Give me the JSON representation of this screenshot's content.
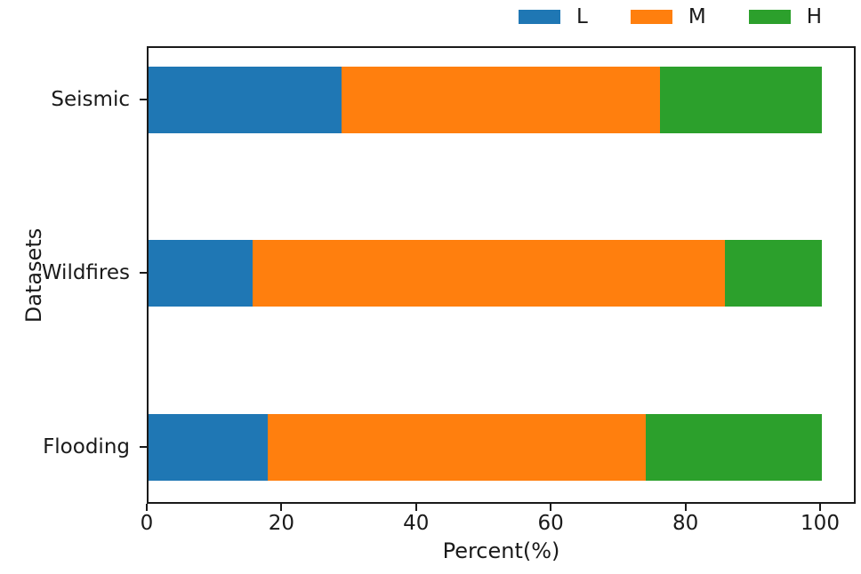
{
  "chart_data": {
    "type": "bar",
    "subtype": "horizontal-stacked",
    "title": "",
    "xlabel": "Percent(%)",
    "ylabel": "Datasets",
    "categories": [
      "Seismic",
      "Wildfires",
      "Flooding"
    ],
    "series": [
      {
        "name": "L",
        "color": "#1f77b4",
        "values": [
          28.7,
          15.5,
          17.7
        ]
      },
      {
        "name": "M",
        "color": "#ff7f0e",
        "values": [
          47.3,
          70.1,
          56.1
        ]
      },
      {
        "name": "H",
        "color": "#2ca02c",
        "values": [
          24.0,
          14.4,
          26.2
        ]
      }
    ],
    "xticks": [
      0,
      20,
      40,
      60,
      80,
      100
    ],
    "xlim": [
      0,
      105.3
    ],
    "grid": false,
    "legend_position": "top-right",
    "colors": {
      "axis": "#1a1a1a",
      "background": "#ffffff"
    }
  }
}
